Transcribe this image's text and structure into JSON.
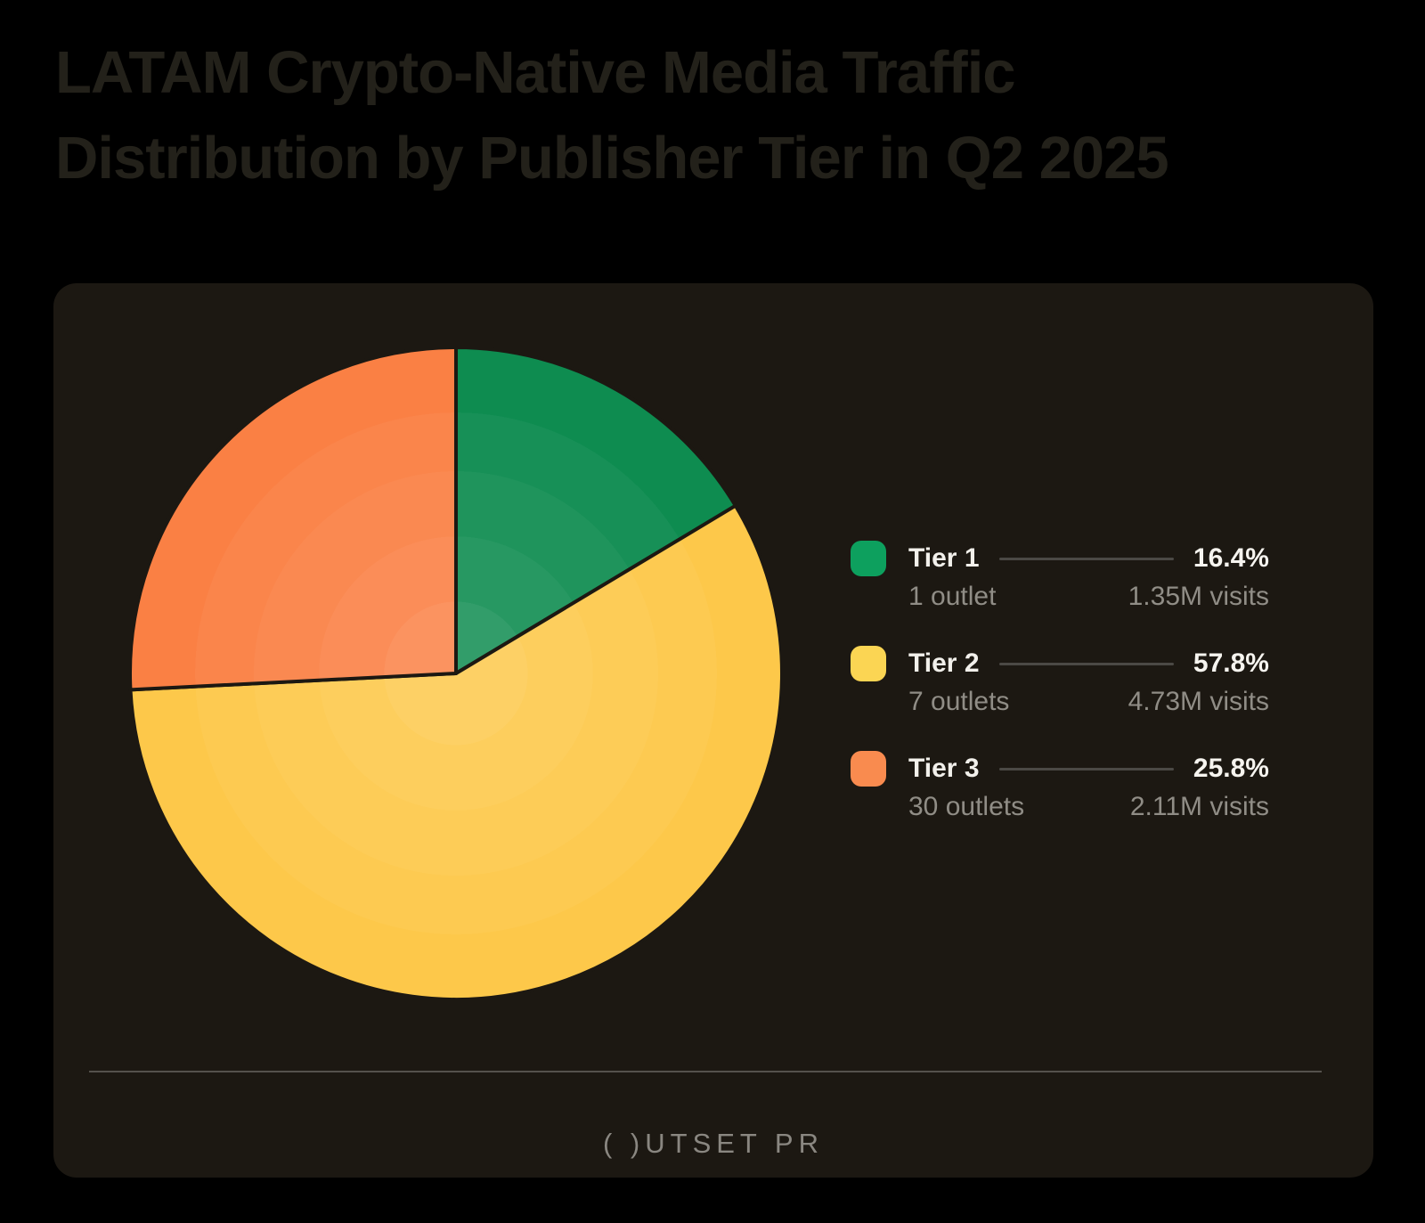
{
  "page": {
    "background": "#000000"
  },
  "title_lines": [
    "LATAM Crypto-Native Media Traffic",
    "Distribution by Publisher Tier in Q2 2025"
  ],
  "card": {
    "background": "#1C1812"
  },
  "legend": {
    "items": [
      {
        "label": "Tier 1",
        "percent": "16.4%",
        "outlets": "1 outlet",
        "visits": "1.35M visits",
        "color": "#0DA05E"
      },
      {
        "label": "Tier 2",
        "percent": "57.8%",
        "outlets": "7 outlets",
        "visits": "4.73M visits",
        "color": "#FBD553"
      },
      {
        "label": "Tier 3",
        "percent": "25.8%",
        "outlets": "30 outlets",
        "visits": "2.11M visits",
        "color": "#F98B4F"
      }
    ]
  },
  "footer": {
    "brand": "OUTSET PR",
    "brand_display": "( )UTSET PR"
  },
  "pie": {
    "slice_colors": [
      "#0E8C50",
      "#FDC84A",
      "#FA8044"
    ],
    "stroke": "#1C1812",
    "stroke_width": 4
  },
  "chart_data": {
    "type": "pie",
    "title": "LATAM Crypto-Native Media Traffic Distribution by Publisher Tier in Q2 2025",
    "categories": [
      "Tier 1",
      "Tier 2",
      "Tier 3"
    ],
    "values_percent": [
      16.4,
      57.8,
      25.8
    ],
    "outlets": [
      1,
      7,
      30
    ],
    "visits_millions": [
      1.35,
      4.73,
      2.11
    ],
    "visits_labels": [
      "1.35M visits",
      "4.73M visits",
      "2.11M visits"
    ],
    "colors": [
      "#0DA05E",
      "#FBD553",
      "#F98B4F"
    ],
    "start_angle": "12 o'clock",
    "direction": "clockwise",
    "legend_position": "right"
  }
}
